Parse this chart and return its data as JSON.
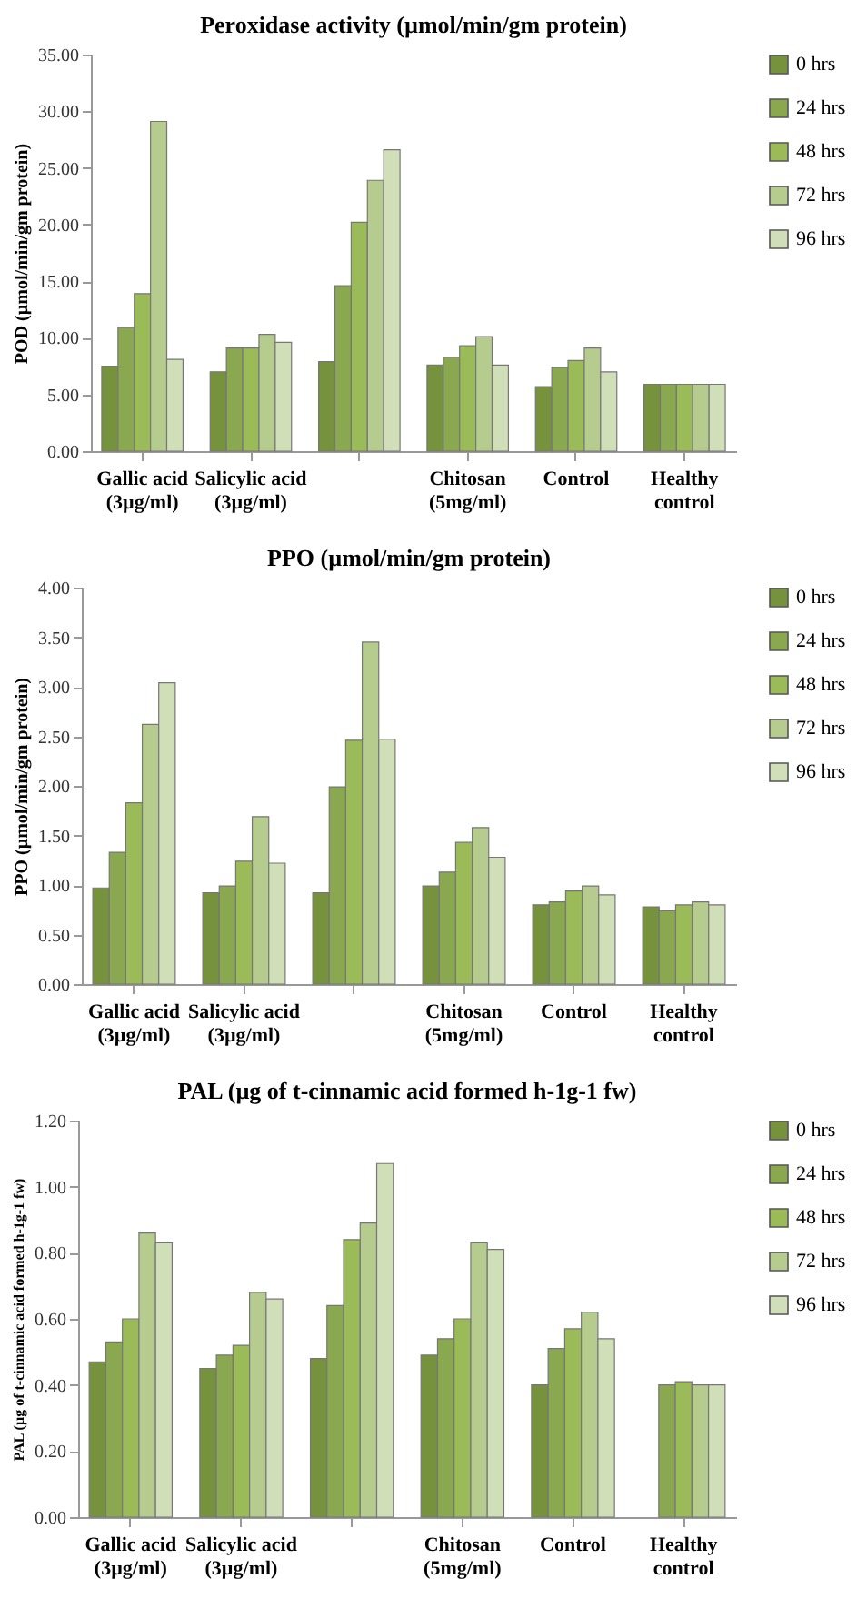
{
  "chart_data": [
    {
      "type": "bar",
      "title": "Peroxidase activity (µmol/min/gm protein)",
      "ylabel": "POD (µmol/min/gm protein)",
      "categories": [
        "Gallic acid\n(3µg/ml)",
        "Salicylic acid\n(3µg/ml)",
        null,
        "Chitosan\n(5mg/ml)",
        "Control",
        "Healthy\ncontrol"
      ],
      "ylim": [
        0,
        35
      ],
      "yticks": [
        {
          "value": 0,
          "label": "0.00"
        },
        {
          "value": 5,
          "label": "5.00"
        },
        {
          "value": 10,
          "label": "10.00"
        },
        {
          "value": 15,
          "label": "15.00"
        },
        {
          "value": 20,
          "label": "20.00"
        },
        {
          "value": 25,
          "label": "25.00"
        },
        {
          "value": 30,
          "label": "30.00"
        },
        {
          "value": 35,
          "label": "35.00"
        }
      ],
      "legend": "right",
      "series": [
        {
          "name": "0 hrs",
          "color": "#76923c",
          "values": [
            7.5,
            7.0,
            7.9,
            7.6,
            5.7,
            5.9
          ]
        },
        {
          "name": "24 hrs",
          "color": "#8aa84f",
          "values": [
            10.9,
            9.1,
            14.6,
            8.3,
            7.4,
            5.9
          ]
        },
        {
          "name": "48 hrs",
          "color": "#9bbb59",
          "values": [
            13.9,
            9.1,
            20.2,
            9.3,
            8.0,
            5.9
          ]
        },
        {
          "name": "72 hrs",
          "color": "#b5cc8e",
          "values": [
            29.1,
            10.3,
            23.9,
            10.1,
            9.1,
            5.9
          ]
        },
        {
          "name": "96 hrs",
          "color": "#d1dfb8",
          "values": [
            8.1,
            9.6,
            26.6,
            7.6,
            7.0,
            5.9
          ]
        }
      ]
    },
    {
      "type": "bar",
      "title": "PPO (µmol/min/gm protein)",
      "ylabel": "PPO (µmol/min/gm protein)",
      "categories": [
        "Gallic acid\n(3µg/ml)",
        "Salicylic acid\n(3µg/ml)",
        null,
        "Chitosan\n(5mg/ml)",
        "Control",
        "Healthy\ncontrol"
      ],
      "ylim": [
        0,
        4
      ],
      "yticks": [
        {
          "value": 0,
          "label": "0.00"
        },
        {
          "value": 0.5,
          "label": "0.50"
        },
        {
          "value": 1,
          "label": "1.00"
        },
        {
          "value": 1.5,
          "label": "1.50"
        },
        {
          "value": 2,
          "label": "2.00"
        },
        {
          "value": 2.5,
          "label": "2.50"
        },
        {
          "value": 3,
          "label": "3.00"
        },
        {
          "value": 3.5,
          "label": "3.50"
        },
        {
          "value": 4,
          "label": "4.00"
        }
      ],
      "legend": "right",
      "series": [
        {
          "name": "0 hrs",
          "color": "#76923c",
          "values": [
            0.97,
            0.92,
            0.92,
            0.99,
            0.8,
            0.78
          ]
        },
        {
          "name": "24 hrs",
          "color": "#8aa84f",
          "values": [
            1.33,
            0.99,
            1.99,
            1.13,
            0.83,
            0.74
          ]
        },
        {
          "name": "48 hrs",
          "color": "#9bbb59",
          "values": [
            1.83,
            1.24,
            2.46,
            1.43,
            0.94,
            0.8
          ]
        },
        {
          "name": "72 hrs",
          "color": "#b5cc8e",
          "values": [
            2.62,
            1.69,
            3.45,
            1.58,
            0.99,
            0.83
          ]
        },
        {
          "name": "96 hrs",
          "color": "#d1dfb8",
          "values": [
            3.04,
            1.22,
            2.47,
            1.28,
            0.9,
            0.8
          ]
        }
      ]
    },
    {
      "type": "bar",
      "title": "PAL (µg of t-cinnamic acid formed h-1g-1 fw)",
      "ylabel": "PAL (µg of t-cinnamic acid formed h-1g-1 fw)",
      "categories": [
        "Gallic acid\n(3µg/ml)",
        "Salicylic acid\n(3µg/ml)",
        null,
        "Chitosan\n(5mg/ml)",
        "Control",
        "Healthy\ncontrol"
      ],
      "ylim": [
        0,
        1.2
      ],
      "yticks": [
        {
          "value": 0,
          "label": "0.00"
        },
        {
          "value": 0.2,
          "label": "0.20"
        },
        {
          "value": 0.4,
          "label": "0.40"
        },
        {
          "value": 0.6,
          "label": "0.60"
        },
        {
          "value": 0.8,
          "label": "0.80"
        },
        {
          "value": 1,
          "label": "1.00"
        },
        {
          "value": 1.2,
          "label": "1.20"
        }
      ],
      "legend": "right",
      "series": [
        {
          "name": "0 hrs",
          "color": "#76923c",
          "values": [
            0.47,
            0.45,
            0.48,
            0.49,
            0.4,
            null
          ]
        },
        {
          "name": "24 hrs",
          "color": "#8aa84f",
          "values": [
            0.53,
            0.49,
            0.64,
            0.54,
            0.51,
            0.4
          ]
        },
        {
          "name": "48 hrs",
          "color": "#9bbb59",
          "values": [
            0.6,
            0.52,
            0.84,
            0.6,
            0.57,
            0.41
          ]
        },
        {
          "name": "72 hrs",
          "color": "#b5cc8e",
          "values": [
            0.86,
            0.68,
            0.89,
            0.83,
            0.62,
            0.4
          ]
        },
        {
          "name": "96 hrs",
          "color": "#d1dfb8",
          "values": [
            0.83,
            0.66,
            1.07,
            0.81,
            0.54,
            0.4
          ]
        }
      ]
    }
  ]
}
